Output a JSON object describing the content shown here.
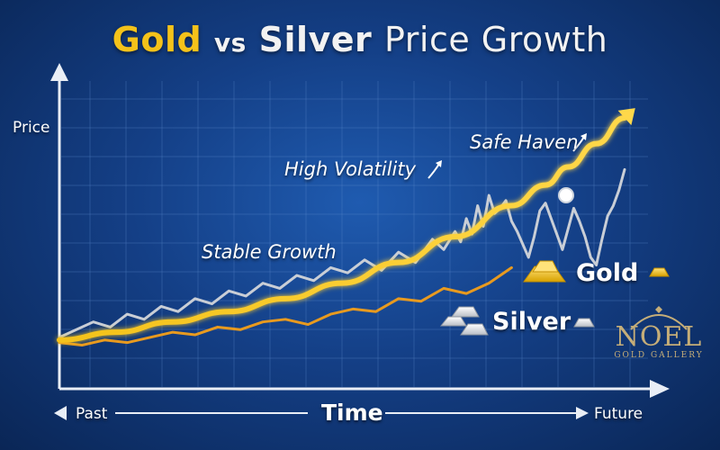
{
  "title": {
    "gold": "Gold",
    "vs": "vs",
    "silver": "Silver",
    "rest": "Price Growth"
  },
  "axes": {
    "ylabel": "Price",
    "xlabel": "Time",
    "left_label": "Past",
    "right_label": "Future"
  },
  "annotations": {
    "stable": "Stable Growth",
    "volatility": "High Volatility",
    "haven": "Safe Haven"
  },
  "legend": {
    "gold": "Gold",
    "silver": "Silver"
  },
  "watermark": {
    "brand": "NOEL",
    "sub": "GOLD GALLERY"
  },
  "colors": {
    "gold": "#f6c417",
    "silver_line": "#c9ced6",
    "orange": "#e89a1f",
    "background": "#143f86",
    "grid": "#5a86c9"
  },
  "chart_data": {
    "type": "line",
    "title": "Gold vs Silver Price Growth",
    "xlabel": "Time",
    "ylabel": "Price",
    "x_range": [
      "Past",
      "Future"
    ],
    "xlim": [
      0,
      100
    ],
    "ylim": [
      0,
      100
    ],
    "grid": true,
    "legend_placement": "right",
    "series": [
      {
        "name": "Gold",
        "color": "#f6c417",
        "style": "smooth",
        "x": [
          0,
          10,
          20,
          30,
          40,
          50,
          60,
          70,
          80,
          86,
          90,
          95,
          100
        ],
        "y": [
          6,
          9,
          13,
          17,
          22,
          28,
          36,
          46,
          58,
          66,
          73,
          82,
          92
        ]
      },
      {
        "name": "",
        "color": "#e89a1f",
        "style": "jagged",
        "x": [
          0,
          4,
          8,
          12,
          16,
          20,
          24,
          28,
          32,
          36,
          40,
          44,
          48,
          52,
          56,
          60,
          64,
          68,
          72,
          76,
          80
        ],
        "y": [
          5,
          4,
          6,
          5,
          7,
          9,
          8,
          11,
          10,
          13,
          14,
          12,
          16,
          18,
          17,
          22,
          21,
          26,
          24,
          28,
          34
        ]
      },
      {
        "name": "Silver",
        "color": "#c9ced6",
        "style": "jagged",
        "x": [
          0,
          3,
          6,
          9,
          12,
          15,
          18,
          21,
          24,
          27,
          30,
          33,
          36,
          39,
          42,
          45,
          48,
          51,
          54,
          57,
          60,
          63,
          66,
          68,
          70,
          71,
          72,
          73,
          74,
          75,
          76,
          77,
          78,
          79,
          80,
          81,
          82,
          83,
          84,
          85,
          86,
          87,
          88,
          89,
          90,
          91,
          92,
          93,
          94,
          95,
          96,
          97,
          98,
          99,
          100
        ],
        "y": [
          7,
          10,
          13,
          11,
          16,
          14,
          19,
          17,
          22,
          20,
          25,
          23,
          28,
          26,
          31,
          29,
          34,
          32,
          37,
          33,
          40,
          36,
          45,
          41,
          48,
          44,
          53,
          47,
          58,
          50,
          62,
          55,
          57,
          60,
          52,
          48,
          43,
          38,
          46,
          56,
          59,
          53,
          47,
          41,
          49,
          57,
          52,
          46,
          38,
          35,
          45,
          54,
          58,
          64,
          72
        ]
      }
    ]
  }
}
